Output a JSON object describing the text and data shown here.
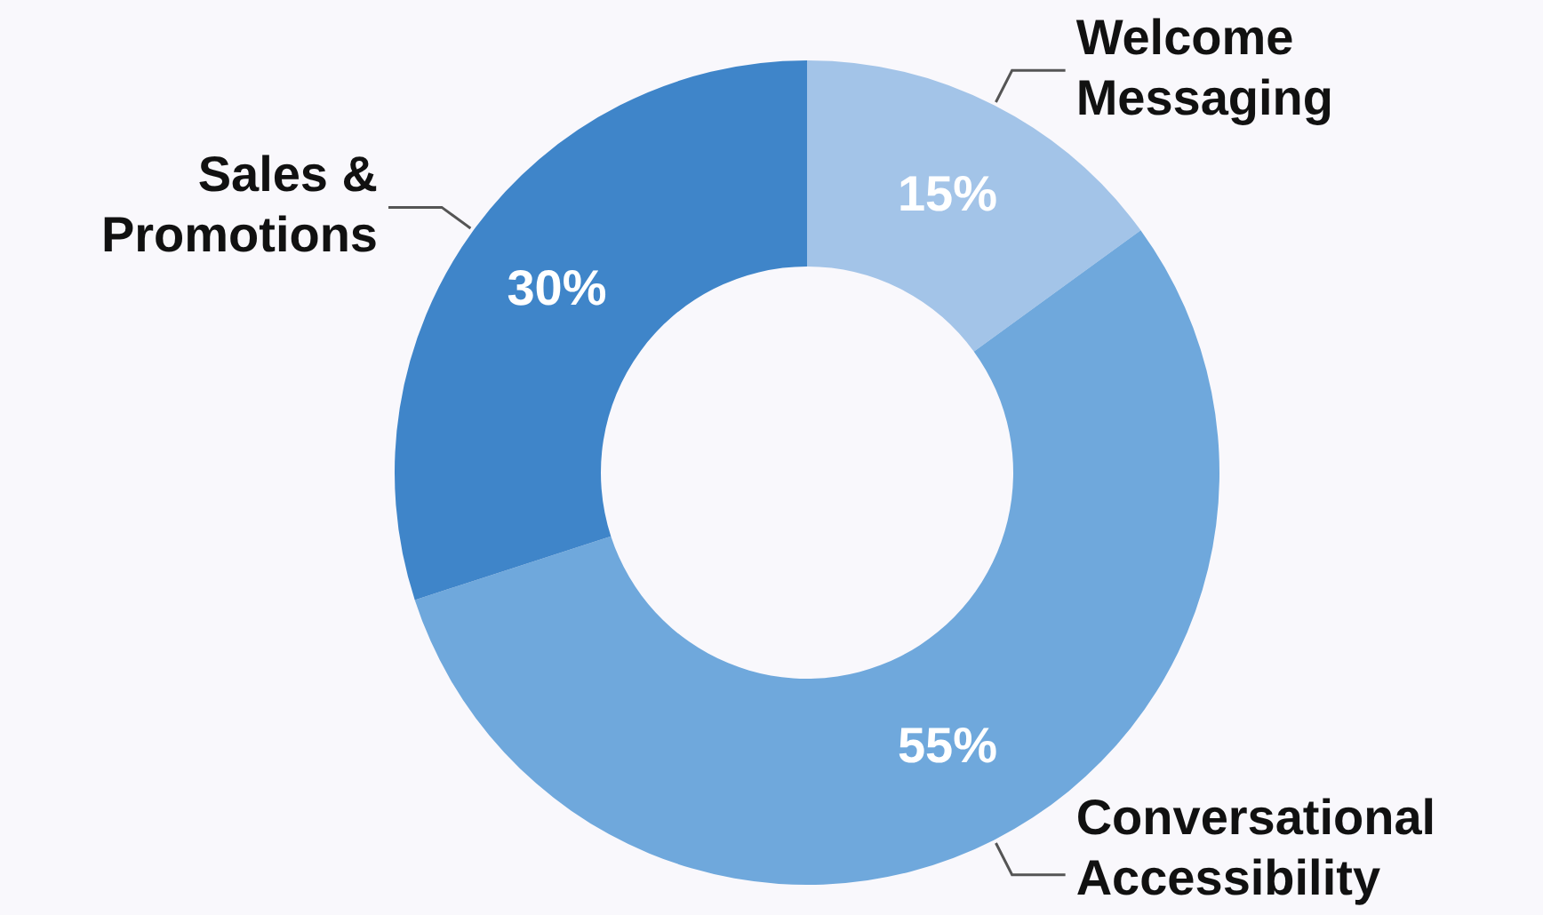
{
  "chart_data": {
    "type": "donut",
    "categories": [
      "Welcome Messaging",
      "Conversational Accessibility",
      "Sales & Promotions"
    ],
    "values": [
      15,
      55,
      30
    ],
    "colors": [
      "#a3c4e8",
      "#6fa8dc",
      "#3f85c9"
    ],
    "value_labels": [
      "15%",
      "55%",
      "30%"
    ],
    "legend": false
  }
}
